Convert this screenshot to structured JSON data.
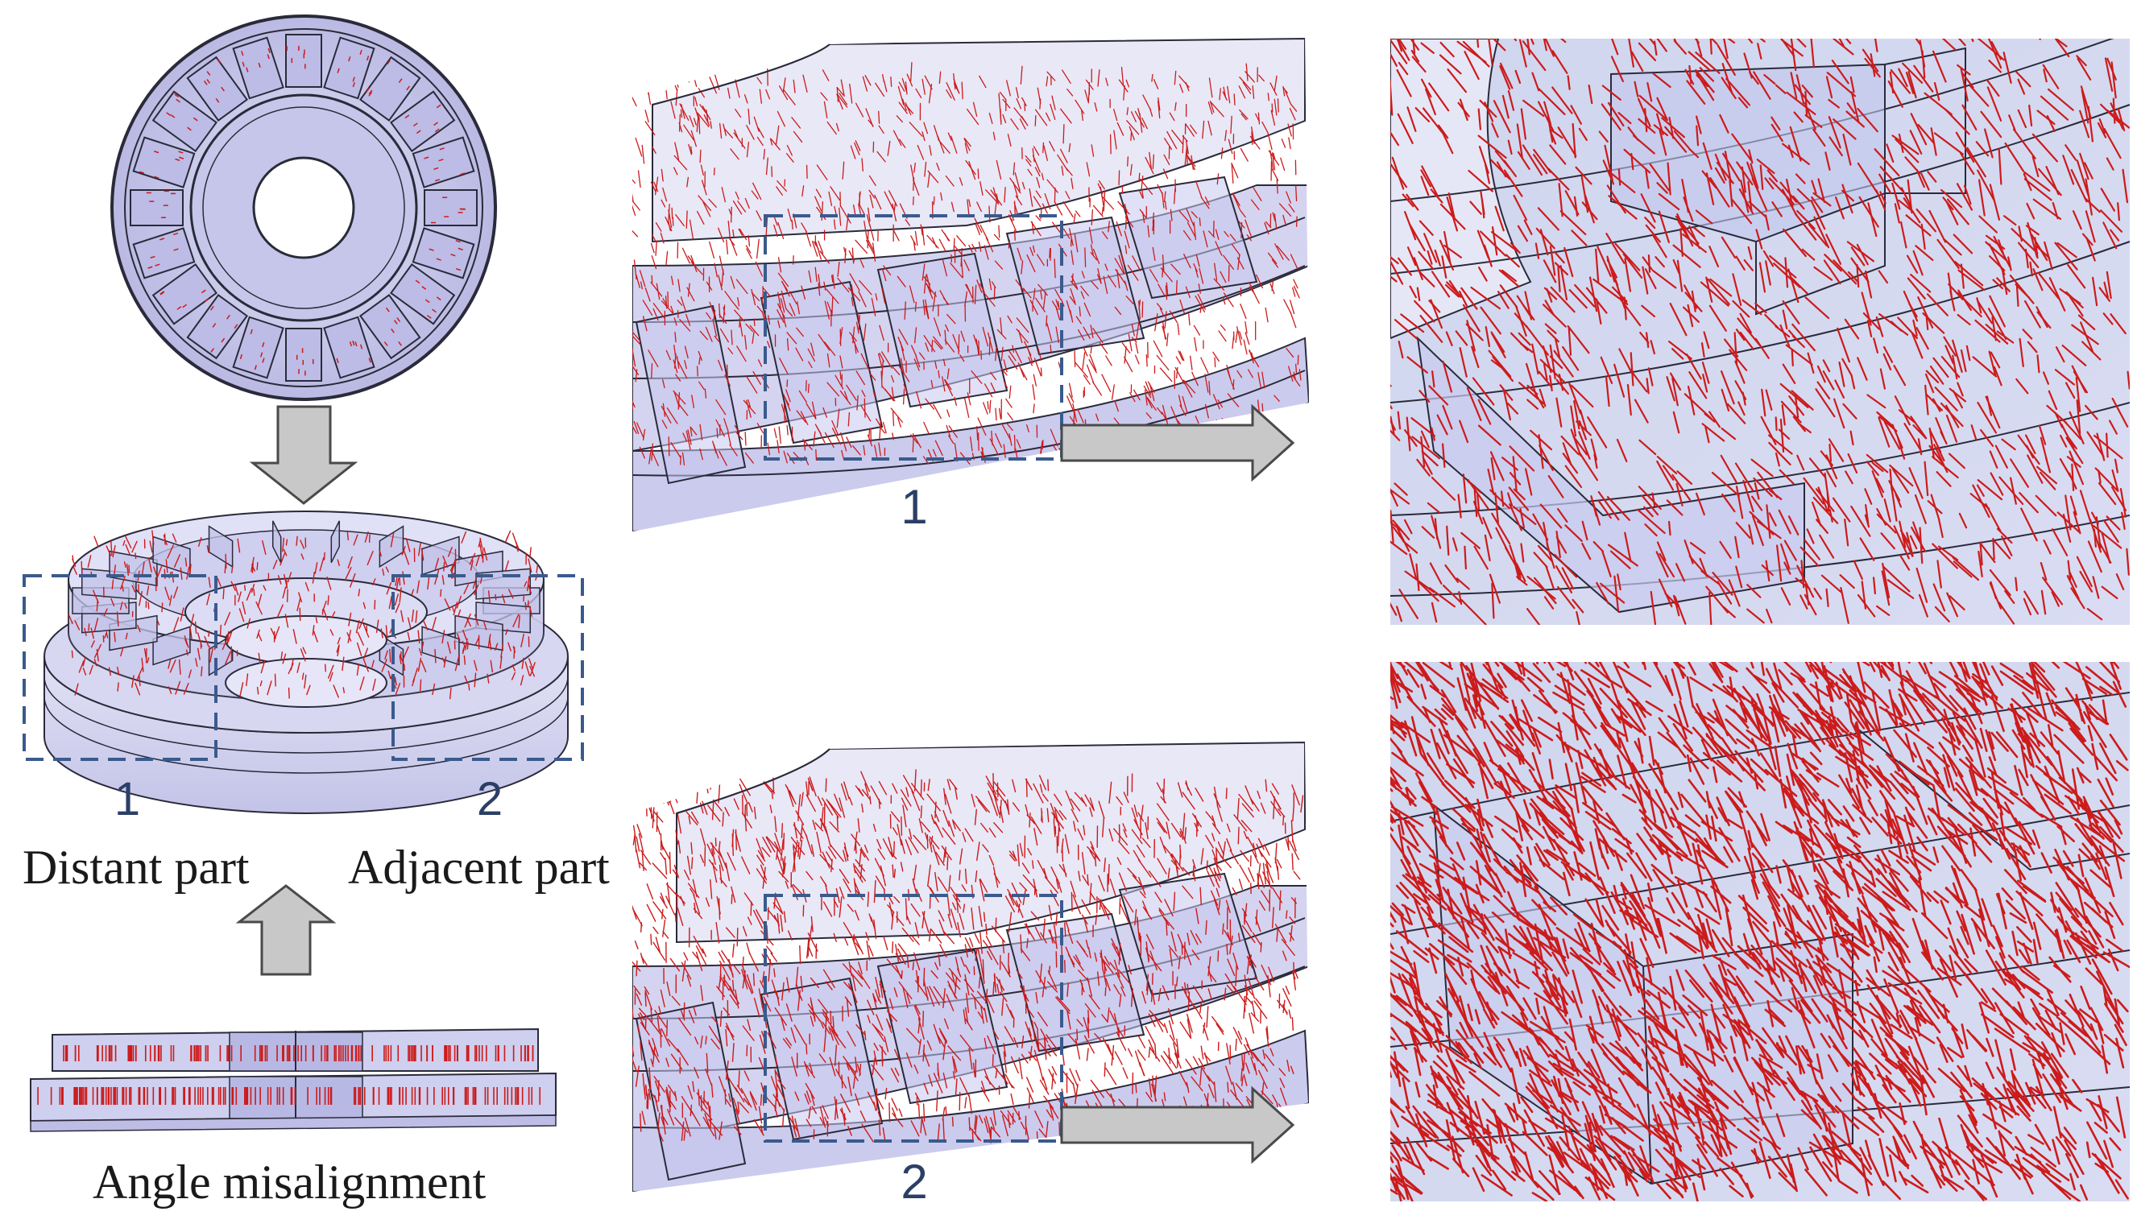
{
  "labels": {
    "num_1_left": "1",
    "num_2_left": "2",
    "distant_part": "Distant part",
    "adjacent_part": "Adjacent part",
    "angle_misalignment": "Angle misalignment",
    "num_1_mid": "1",
    "num_2_mid": "2"
  },
  "colors": {
    "body_fill": "#c9c9ec",
    "body_fill_light": "#dcdcf3",
    "edge": "#2a2a3a",
    "field_arrow": "#cc1b1b",
    "dashed_box": "#3a5a8c",
    "block_arrow_fill": "#c8c8c8",
    "block_arrow_stroke": "#4a4a4a"
  },
  "icons": [
    "arrow-down-icon",
    "arrow-up-icon",
    "arrow-right-icon"
  ]
}
